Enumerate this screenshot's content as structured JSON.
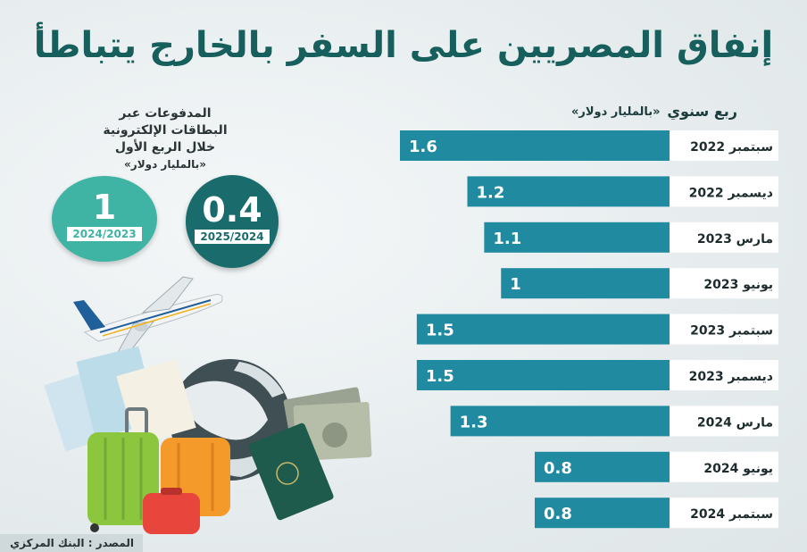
{
  "title": "إنفاق المصريين على السفر بالخارج يتباطأ",
  "column_header": "ربع سنوي",
  "unit": "«بالمليار دولار»",
  "info": {
    "line1": "المدفوعات عبر",
    "line2": "البطاقات الإلكترونية",
    "line3": "خلال الربع الأول",
    "unit": "«بالمليار دولار»",
    "circles": [
      {
        "value": "0.4",
        "year": "2025/2024"
      },
      {
        "value": "1",
        "year": "2024/2023"
      }
    ]
  },
  "source": "المصدر : البنك المركزي",
  "colors": {
    "bar": "#1f8aa0",
    "title": "#175f5c",
    "circle_new": "#1a6b6b",
    "circle_old": "#3fb4a4"
  },
  "chart_data": {
    "type": "bar",
    "orientation": "horizontal",
    "categories": [
      "سبتمبر 2022",
      "ديسمبر 2022",
      "مارس 2023",
      "يونيو 2023",
      "سبتمبر 2023",
      "ديسمبر 2023",
      "مارس 2024",
      "يونيو 2024",
      "سبتمبر 2024"
    ],
    "values": [
      1.6,
      1.2,
      1.1,
      1,
      1.5,
      1.5,
      1.3,
      0.8,
      0.8
    ],
    "value_labels": [
      "1.6",
      "1.2",
      "1.1",
      "1",
      "1.5",
      "1.5",
      "1.3",
      "0.8",
      "0.8"
    ],
    "ylabel": "ربع سنوي",
    "xlabel": "«بالمليار دولار»",
    "xlim": [
      0,
      1.6
    ],
    "grid": false,
    "legend": "none"
  }
}
